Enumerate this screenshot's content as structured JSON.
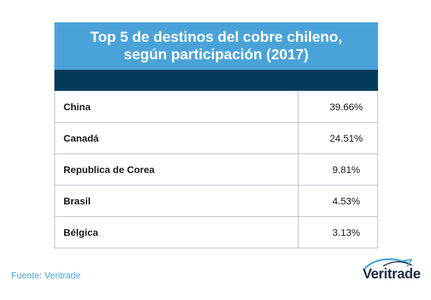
{
  "chart_data": {
    "type": "table",
    "title_line1": "Top 5 de destinos del cobre chileno,",
    "title_line2": "según participación (2017)",
    "rows": [
      {
        "country": "China",
        "value": 39.66,
        "label": "39.66%"
      },
      {
        "country": "Canadá",
        "value": 24.51,
        "label": "24.51%"
      },
      {
        "country": "Republica de Corea",
        "value": 9.81,
        "label": "9.81%"
      },
      {
        "country": "Brasil",
        "value": 4.53,
        "label": "4.53%"
      },
      {
        "country": "Bélgica",
        "value": 3.13,
        "label": "3.13%"
      }
    ]
  },
  "footer": {
    "source": "Fuente: Veritrade",
    "logo_text": "Veritrade"
  },
  "colors": {
    "title_band": "#4aa3d8",
    "dark_band": "#043b5b",
    "source_text": "#4aa3d8",
    "logo_text": "#1c2e48"
  }
}
